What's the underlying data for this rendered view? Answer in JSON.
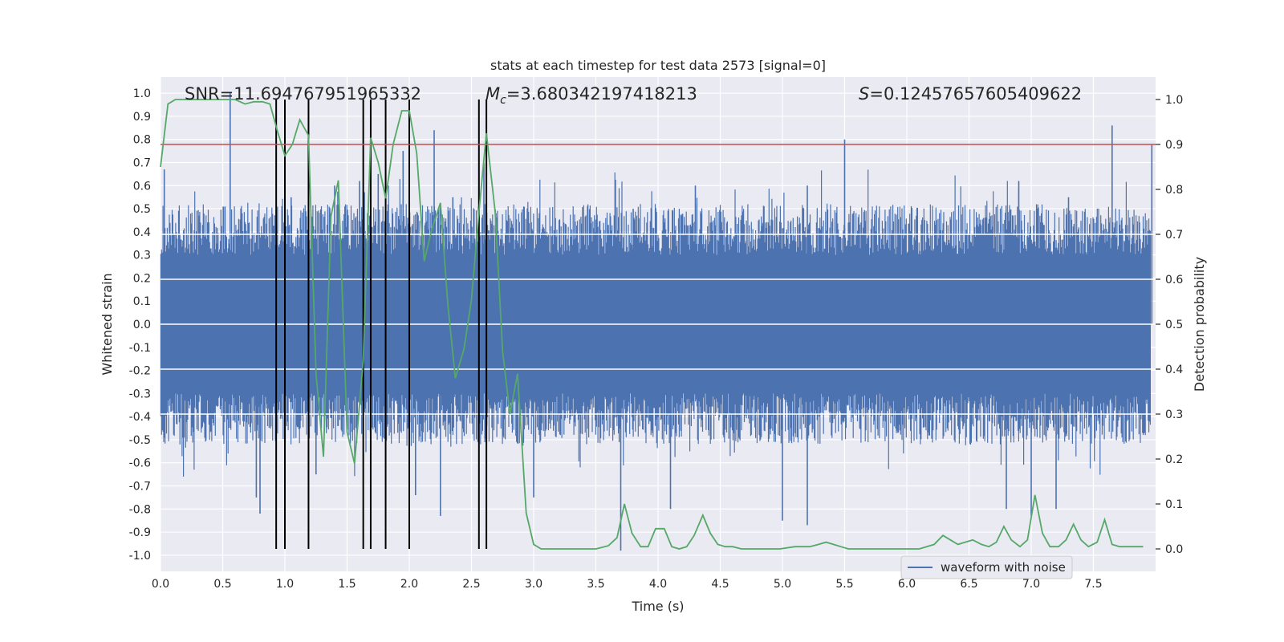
{
  "chart_data": {
    "type": "line",
    "title": "stats at each timestep for test data 2573 [signal=0]",
    "xlabel": "Time (s)",
    "ylabel": "Whitened strain",
    "y2label": "Detection probability",
    "xlim": [
      0.0,
      8.0
    ],
    "ylim": [
      -1.07,
      1.07
    ],
    "y2lim": [
      -0.05,
      1.05
    ],
    "x_ticks": [
      "0.0",
      "0.5",
      "1.0",
      "1.5",
      "2.0",
      "2.5",
      "3.0",
      "3.5",
      "4.0",
      "4.5",
      "5.0",
      "5.5",
      "6.0",
      "6.5",
      "7.0",
      "7.5"
    ],
    "y_ticks": [
      "1.0",
      "0.9",
      "0.8",
      "0.7",
      "0.6",
      "0.5",
      "0.4",
      "0.3",
      "0.2",
      "0.1",
      "0.0",
      "-0.1",
      "-0.2",
      "-0.3",
      "-0.4",
      "-0.5",
      "-0.6",
      "-0.7",
      "-0.8",
      "-0.9",
      "-1.0"
    ],
    "y2_ticks": [
      "1.0",
      "0.9",
      "0.8",
      "0.7",
      "0.6",
      "0.5",
      "0.4",
      "0.3",
      "0.2",
      "0.1",
      "0.0"
    ],
    "annotations": {
      "snr": "SNR=11.694767951965332",
      "mc_symbol": "M",
      "mc_sub": "c",
      "mc_value": "=3.680342197418213",
      "s_symbol": "S",
      "s_value": "=0.12457657605409622"
    },
    "threshold": 0.9,
    "detection_times": [
      0.93,
      1.0,
      1.19,
      1.63,
      1.69,
      1.81,
      2.0,
      2.56,
      2.62
    ],
    "legend": {
      "label": "waveform with noise",
      "placement": "lower center"
    },
    "grid": true,
    "waveform": {
      "name": "waveform with noise",
      "color": "#4c72b0",
      "envelope_typical": 0.4,
      "peaks": [
        [
          0.03,
          0.67
        ],
        [
          0.56,
          1.0
        ],
        [
          0.77,
          -0.75
        ],
        [
          0.8,
          -0.82
        ],
        [
          1.0,
          -0.7
        ],
        [
          1.05,
          0.55
        ],
        [
          1.25,
          -0.65
        ],
        [
          1.4,
          0.6
        ],
        [
          1.6,
          0.62
        ],
        [
          1.75,
          0.65
        ],
        [
          1.95,
          0.75
        ],
        [
          2.05,
          -0.74
        ],
        [
          2.2,
          0.84
        ],
        [
          2.25,
          -0.83
        ],
        [
          2.35,
          0.55
        ],
        [
          2.6,
          0.7
        ],
        [
          2.9,
          0.4
        ],
        [
          3.0,
          -0.75
        ],
        [
          3.6,
          0.43
        ],
        [
          3.7,
          -0.98
        ],
        [
          3.8,
          0.5
        ],
        [
          4.1,
          -0.8
        ],
        [
          4.3,
          0.6
        ],
        [
          5.0,
          -0.85
        ],
        [
          5.2,
          -0.87
        ],
        [
          5.5,
          0.8
        ],
        [
          5.2,
          0.6
        ],
        [
          6.8,
          -0.8
        ],
        [
          7.0,
          -0.83
        ],
        [
          7.3,
          0.55
        ],
        [
          7.65,
          0.86
        ],
        [
          7.97,
          0.78
        ],
        [
          6.9,
          0.62
        ],
        [
          7.2,
          -0.8
        ]
      ]
    },
    "probability": {
      "color": "#55a868",
      "x": [
        0.0,
        0.06,
        0.12,
        0.2,
        0.3,
        0.4,
        0.5,
        0.6,
        0.68,
        0.75,
        0.82,
        0.88,
        0.94,
        1.0,
        1.06,
        1.12,
        1.19,
        1.25,
        1.31,
        1.37,
        1.43,
        1.5,
        1.56,
        1.63,
        1.69,
        1.75,
        1.81,
        1.87,
        1.94,
        2.0,
        2.06,
        2.12,
        2.18,
        2.25,
        2.31,
        2.37,
        2.44,
        2.5,
        2.56,
        2.62,
        2.69,
        2.75,
        2.81,
        2.87,
        2.94,
        3.0,
        3.06,
        3.2,
        3.5,
        3.6,
        3.67,
        3.73,
        3.79,
        3.86,
        3.92,
        3.98,
        4.05,
        4.11,
        4.17,
        4.23,
        4.29,
        4.36,
        4.42,
        4.48,
        4.54,
        4.6,
        4.67,
        4.73,
        4.85,
        4.98,
        5.1,
        5.22,
        5.29,
        5.35,
        5.41,
        5.47,
        5.53,
        5.6,
        5.7,
        5.9,
        6.1,
        6.22,
        6.29,
        6.35,
        6.41,
        6.47,
        6.53,
        6.6,
        6.66,
        6.72,
        6.78,
        6.84,
        6.91,
        6.97,
        7.03,
        7.09,
        7.15,
        7.22,
        7.28,
        7.34,
        7.4,
        7.46,
        7.53,
        7.59,
        7.65,
        7.71,
        7.77,
        7.84,
        7.9
      ],
      "y": [
        0.85,
        0.99,
        1.0,
        1.0,
        1.0,
        1.0,
        1.0,
        1.0,
        0.99,
        0.995,
        0.995,
        0.99,
        0.93,
        0.875,
        0.9,
        0.955,
        0.92,
        0.39,
        0.205,
        0.74,
        0.82,
        0.26,
        0.19,
        0.42,
        0.915,
        0.86,
        0.78,
        0.9,
        0.975,
        0.975,
        0.88,
        0.64,
        0.71,
        0.77,
        0.545,
        0.38,
        0.445,
        0.555,
        0.75,
        0.925,
        0.75,
        0.44,
        0.3,
        0.39,
        0.08,
        0.01,
        0.0,
        0.0,
        0.0,
        0.007,
        0.025,
        0.1,
        0.035,
        0.005,
        0.005,
        0.045,
        0.045,
        0.005,
        0.0,
        0.005,
        0.03,
        0.075,
        0.035,
        0.01,
        0.005,
        0.005,
        0.0,
        0.0,
        0.0,
        0.0,
        0.005,
        0.005,
        0.01,
        0.015,
        0.01,
        0.005,
        0.0,
        0.0,
        0.0,
        0.0,
        0.0,
        0.01,
        0.03,
        0.02,
        0.01,
        0.015,
        0.02,
        0.01,
        0.005,
        0.015,
        0.05,
        0.02,
        0.005,
        0.02,
        0.12,
        0.035,
        0.005,
        0.005,
        0.02,
        0.055,
        0.02,
        0.005,
        0.015,
        0.065,
        0.01,
        0.005,
        0.005,
        0.005,
        0.005
      ]
    }
  }
}
